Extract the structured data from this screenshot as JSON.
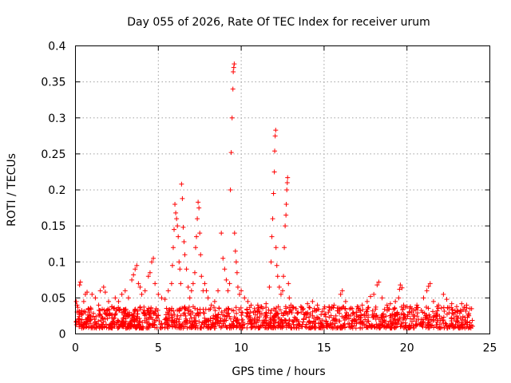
{
  "chart_data": {
    "type": "scatter",
    "title": "Day 055 of 2026, Rate Of TEC Index for receiver urum",
    "xlabel": "GPS time / hours",
    "ylabel": "ROTI / TECUs",
    "xlim": [
      0,
      25
    ],
    "ylim": [
      0,
      0.4
    ],
    "x_ticks": [
      0,
      5,
      10,
      15,
      20,
      25
    ],
    "x_tick_labels": [
      "0",
      "5",
      "10",
      "15",
      "20",
      "25"
    ],
    "y_ticks": [
      0,
      0.05,
      0.1,
      0.15,
      0.2,
      0.25,
      0.3,
      0.35,
      0.4
    ],
    "y_tick_labels": [
      "0",
      "0.05",
      "0.1",
      "0.15",
      "0.2",
      "0.25",
      "0.3",
      "0.35",
      "0.4"
    ],
    "grid": true,
    "legend": "none",
    "marker": "+",
    "color": "#ff0000",
    "series": [
      {
        "points": [
          [
            0.05,
            0.045
          ],
          [
            0.1,
            0.04
          ],
          [
            0.2,
            0.03
          ],
          [
            0.25,
            0.068
          ],
          [
            0.3,
            0.072
          ],
          [
            0.4,
            0.02
          ],
          [
            0.5,
            0.045
          ],
          [
            0.6,
            0.055
          ],
          [
            0.7,
            0.058
          ],
          [
            0.8,
            0.035
          ],
          [
            0.9,
            0.025
          ],
          [
            1.0,
            0.055
          ],
          [
            1.2,
            0.05
          ],
          [
            1.4,
            0.04
          ],
          [
            1.5,
            0.06
          ],
          [
            1.7,
            0.065
          ],
          [
            1.8,
            0.058
          ],
          [
            2.0,
            0.045
          ],
          [
            2.2,
            0.038
          ],
          [
            2.4,
            0.05
          ],
          [
            2.6,
            0.045
          ],
          [
            2.8,
            0.055
          ],
          [
            3.0,
            0.06
          ],
          [
            3.2,
            0.05
          ],
          [
            3.4,
            0.075
          ],
          [
            3.5,
            0.082
          ],
          [
            3.6,
            0.09
          ],
          [
            3.7,
            0.095
          ],
          [
            3.8,
            0.07
          ],
          [
            3.9,
            0.065
          ],
          [
            4.0,
            0.055
          ],
          [
            4.2,
            0.06
          ],
          [
            4.4,
            0.08
          ],
          [
            4.5,
            0.085
          ],
          [
            4.6,
            0.1
          ],
          [
            4.7,
            0.105
          ],
          [
            4.8,
            0.07
          ],
          [
            5.0,
            0.055
          ],
          [
            5.2,
            0.05
          ],
          [
            5.4,
            0.048
          ],
          [
            5.6,
            0.06
          ],
          [
            5.8,
            0.07
          ],
          [
            5.85,
            0.095
          ],
          [
            5.9,
            0.12
          ],
          [
            5.95,
            0.145
          ],
          [
            6.0,
            0.18
          ],
          [
            6.05,
            0.168
          ],
          [
            6.1,
            0.16
          ],
          [
            6.15,
            0.15
          ],
          [
            6.2,
            0.135
          ],
          [
            6.25,
            0.1
          ],
          [
            6.3,
            0.09
          ],
          [
            6.35,
            0.07
          ],
          [
            6.4,
            0.208
          ],
          [
            6.45,
            0.188
          ],
          [
            6.5,
            0.148
          ],
          [
            6.55,
            0.128
          ],
          [
            6.6,
            0.11
          ],
          [
            6.7,
            0.09
          ],
          [
            6.8,
            0.065
          ],
          [
            6.9,
            0.05
          ],
          [
            7.0,
            0.06
          ],
          [
            7.1,
            0.07
          ],
          [
            7.2,
            0.085
          ],
          [
            7.25,
            0.12
          ],
          [
            7.3,
            0.135
          ],
          [
            7.35,
            0.16
          ],
          [
            7.4,
            0.183
          ],
          [
            7.45,
            0.175
          ],
          [
            7.5,
            0.14
          ],
          [
            7.55,
            0.11
          ],
          [
            7.6,
            0.08
          ],
          [
            7.7,
            0.06
          ],
          [
            7.8,
            0.07
          ],
          [
            7.9,
            0.06
          ],
          [
            8.0,
            0.05
          ],
          [
            8.2,
            0.04
          ],
          [
            8.4,
            0.045
          ],
          [
            8.6,
            0.06
          ],
          [
            8.8,
            0.14
          ],
          [
            8.9,
            0.105
          ],
          [
            9.0,
            0.09
          ],
          [
            9.1,
            0.075
          ],
          [
            9.2,
            0.06
          ],
          [
            9.3,
            0.07
          ],
          [
            9.35,
            0.2
          ],
          [
            9.4,
            0.252
          ],
          [
            9.45,
            0.3
          ],
          [
            9.5,
            0.34
          ],
          [
            9.52,
            0.364
          ],
          [
            9.55,
            0.37
          ],
          [
            9.58,
            0.375
          ],
          [
            9.6,
            0.14
          ],
          [
            9.65,
            0.115
          ],
          [
            9.7,
            0.1
          ],
          [
            9.75,
            0.085
          ],
          [
            9.8,
            0.065
          ],
          [
            9.9,
            0.055
          ],
          [
            10.0,
            0.06
          ],
          [
            10.2,
            0.05
          ],
          [
            10.4,
            0.045
          ],
          [
            10.6,
            0.04
          ],
          [
            10.8,
            0.035
          ],
          [
            11.0,
            0.04
          ],
          [
            11.2,
            0.038
          ],
          [
            11.5,
            0.042
          ],
          [
            11.7,
            0.065
          ],
          [
            11.8,
            0.1
          ],
          [
            11.85,
            0.135
          ],
          [
            11.9,
            0.16
          ],
          [
            11.95,
            0.195
          ],
          [
            12.0,
            0.225
          ],
          [
            12.02,
            0.254
          ],
          [
            12.05,
            0.275
          ],
          [
            12.08,
            0.283
          ],
          [
            12.1,
            0.12
          ],
          [
            12.15,
            0.095
          ],
          [
            12.2,
            0.08
          ],
          [
            12.3,
            0.065
          ],
          [
            12.4,
            0.055
          ],
          [
            12.5,
            0.06
          ],
          [
            12.55,
            0.08
          ],
          [
            12.6,
            0.12
          ],
          [
            12.65,
            0.15
          ],
          [
            12.7,
            0.165
          ],
          [
            12.72,
            0.18
          ],
          [
            12.75,
            0.2
          ],
          [
            12.78,
            0.21
          ],
          [
            12.8,
            0.217
          ],
          [
            12.85,
            0.07
          ],
          [
            12.9,
            0.05
          ],
          [
            13.0,
            0.04
          ],
          [
            13.3,
            0.035
          ],
          [
            13.6,
            0.038
          ],
          [
            14.0,
            0.042
          ],
          [
            14.3,
            0.045
          ],
          [
            14.6,
            0.04
          ],
          [
            15.0,
            0.035
          ],
          [
            15.3,
            0.038
          ],
          [
            15.6,
            0.04
          ],
          [
            16.0,
            0.055
          ],
          [
            16.1,
            0.06
          ],
          [
            16.3,
            0.045
          ],
          [
            16.7,
            0.035
          ],
          [
            17.0,
            0.038
          ],
          [
            17.3,
            0.04
          ],
          [
            17.6,
            0.045
          ],
          [
            17.8,
            0.052
          ],
          [
            18.0,
            0.055
          ],
          [
            18.2,
            0.068
          ],
          [
            18.3,
            0.072
          ],
          [
            18.5,
            0.05
          ],
          [
            18.8,
            0.04
          ],
          [
            19.0,
            0.042
          ],
          [
            19.3,
            0.045
          ],
          [
            19.5,
            0.05
          ],
          [
            19.55,
            0.062
          ],
          [
            19.6,
            0.068
          ],
          [
            19.7,
            0.064
          ],
          [
            19.8,
            0.04
          ],
          [
            20.0,
            0.038
          ],
          [
            20.3,
            0.035
          ],
          [
            20.6,
            0.04
          ],
          [
            21.0,
            0.05
          ],
          [
            21.2,
            0.06
          ],
          [
            21.3,
            0.066
          ],
          [
            21.4,
            0.07
          ],
          [
            21.6,
            0.045
          ],
          [
            21.9,
            0.04
          ],
          [
            22.2,
            0.055
          ],
          [
            22.4,
            0.048
          ],
          [
            22.7,
            0.042
          ],
          [
            23.0,
            0.038
          ],
          [
            23.3,
            0.042
          ],
          [
            23.6,
            0.04
          ],
          [
            23.9,
            0.035
          ]
        ]
      }
    ]
  }
}
